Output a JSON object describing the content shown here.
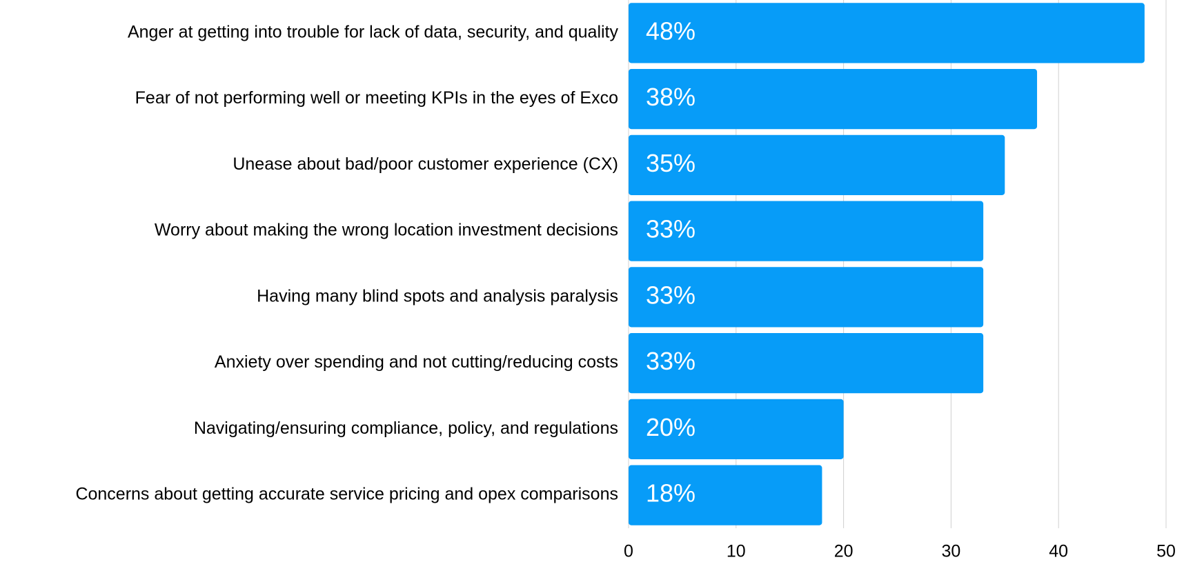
{
  "chart_data": {
    "type": "hbar",
    "categories": [
      "Anger at getting into trouble for lack of data, security, and quality",
      "Fear of not performing well or meeting KPIs in the eyes of Exco",
      "Unease about bad/poor customer experience (CX)",
      "Worry about making the wrong location investment decisions",
      "Having many blind spots and analysis paralysis",
      "Anxiety over spending and not cutting/reducing costs",
      "Navigating/ensuring compliance, policy, and regulations",
      "Concerns about getting accurate service pricing and opex comparisons"
    ],
    "values": [
      48,
      38,
      35,
      33,
      33,
      33,
      20,
      18
    ],
    "value_labels": [
      "48%",
      "38%",
      "35%",
      "33%",
      "33%",
      "33%",
      "20%",
      "18%"
    ],
    "color": "#079cf8",
    "xlim": [
      0,
      50
    ],
    "xticks": [
      0,
      10,
      20,
      30,
      40,
      50
    ],
    "grid": true
  }
}
